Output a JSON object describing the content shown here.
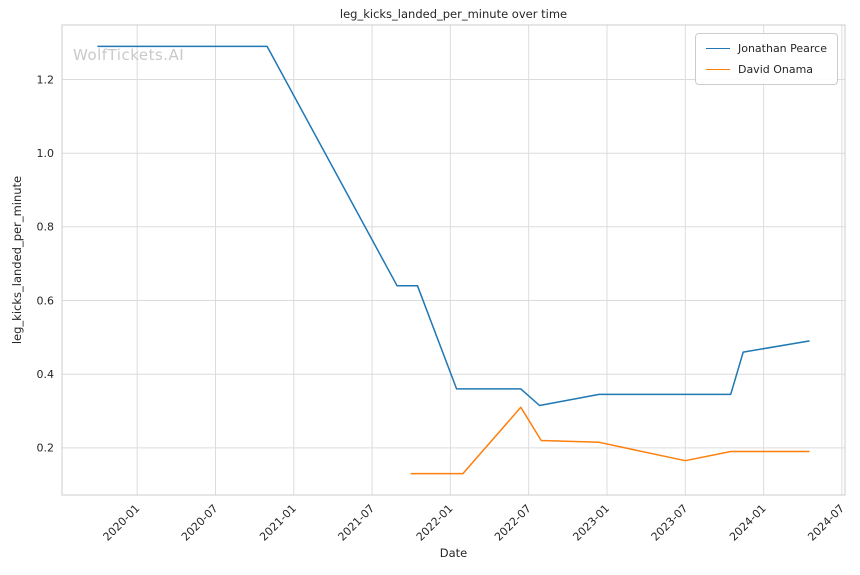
{
  "watermark": "WolfTickets.AI",
  "chart_data": {
    "type": "line",
    "title": "leg_kicks_landed_per_minute over time",
    "xlabel": "Date",
    "ylabel": "leg_kicks_landed_per_minute",
    "grid": true,
    "legend_position": "top-right",
    "xlim": [
      2019.52,
      2024.52
    ],
    "ylim": [
      0.072,
      1.348
    ],
    "colors": {
      "grid": "#dcdcdc",
      "spine": "#cccccc",
      "text": "#262626",
      "watermark": "#c9c9c9",
      "series_blue": "#1f77b4",
      "series_orange": "#ff7f0e"
    },
    "x_ticks": [
      {
        "v": 2020.0,
        "label": "2020-01"
      },
      {
        "v": 2020.5,
        "label": "2020-07"
      },
      {
        "v": 2021.0,
        "label": "2021-01"
      },
      {
        "v": 2021.5,
        "label": "2021-07"
      },
      {
        "v": 2022.0,
        "label": "2022-01"
      },
      {
        "v": 2022.5,
        "label": "2022-07"
      },
      {
        "v": 2023.0,
        "label": "2023-01"
      },
      {
        "v": 2023.5,
        "label": "2023-07"
      },
      {
        "v": 2024.0,
        "label": "2024-01"
      },
      {
        "v": 2024.5,
        "label": "2024-07"
      }
    ],
    "y_ticks": [
      {
        "v": 0.2,
        "label": "0.2"
      },
      {
        "v": 0.4,
        "label": "0.4"
      },
      {
        "v": 0.6,
        "label": "0.6"
      },
      {
        "v": 0.8,
        "label": "0.8"
      },
      {
        "v": 1.0,
        "label": "1.0"
      },
      {
        "v": 1.2,
        "label": "1.2"
      }
    ],
    "series": [
      {
        "name": "Jonathan Pearce",
        "color": "#1f77b4",
        "points": [
          {
            "date": "2019-10",
            "x": 2019.75,
            "y": 1.29
          },
          {
            "date": "2020-11",
            "x": 2020.83,
            "y": 1.29
          },
          {
            "date": "2021-09",
            "x": 2021.66,
            "y": 0.64
          },
          {
            "date": "2021-10",
            "x": 2021.79,
            "y": 0.64
          },
          {
            "date": "2022-01",
            "x": 2022.04,
            "y": 0.36
          },
          {
            "date": "2022-06",
            "x": 2022.45,
            "y": 0.36
          },
          {
            "date": "2022-07",
            "x": 2022.57,
            "y": 0.315
          },
          {
            "date": "2022-12",
            "x": 2022.95,
            "y": 0.345
          },
          {
            "date": "2023-10",
            "x": 2023.79,
            "y": 0.345
          },
          {
            "date": "2023-11",
            "x": 2023.87,
            "y": 0.46
          },
          {
            "date": "2024-04",
            "x": 2024.29,
            "y": 0.49
          }
        ]
      },
      {
        "name": "David Onama",
        "color": "#ff7f0e",
        "points": [
          {
            "date": "2021-10",
            "x": 2021.75,
            "y": 0.13
          },
          {
            "date": "2022-02",
            "x": 2022.08,
            "y": 0.13
          },
          {
            "date": "2022-06",
            "x": 2022.45,
            "y": 0.31
          },
          {
            "date": "2022-08",
            "x": 2022.58,
            "y": 0.22
          },
          {
            "date": "2022-12",
            "x": 2022.95,
            "y": 0.215
          },
          {
            "date": "2023-07",
            "x": 2023.5,
            "y": 0.165
          },
          {
            "date": "2023-10",
            "x": 2023.79,
            "y": 0.19
          },
          {
            "date": "2024-04",
            "x": 2024.29,
            "y": 0.19
          }
        ]
      }
    ]
  }
}
